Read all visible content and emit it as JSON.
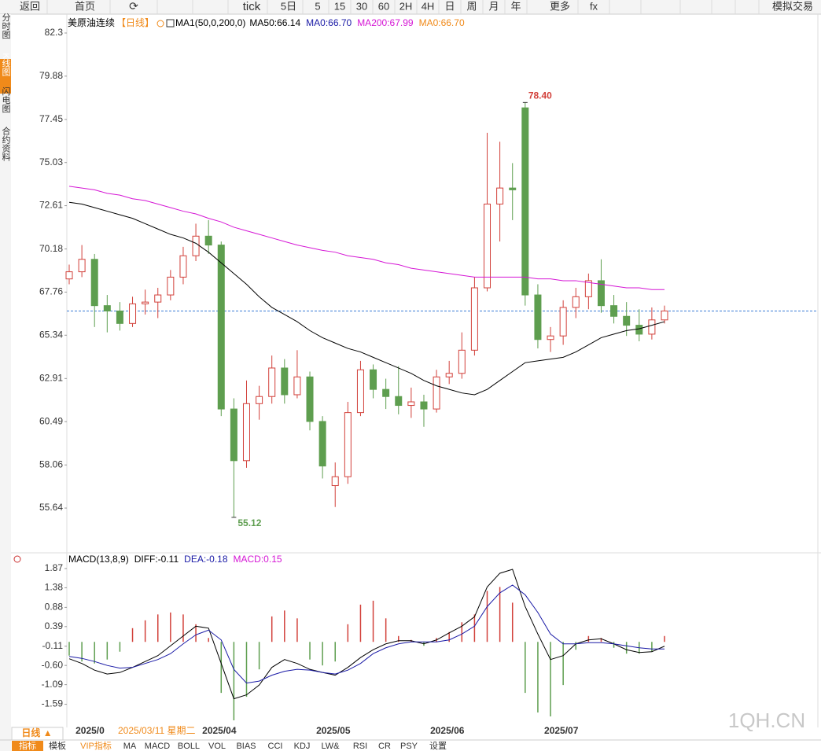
{
  "toolbar": [
    "返回",
    "首页",
    "tick",
    "5日",
    "5",
    "15",
    "30",
    "60",
    "2H",
    "4H",
    "日",
    "周",
    "月",
    "年",
    "更多",
    "fx",
    "模拟交易"
  ],
  "sidebar": [
    "分时图",
    "K线图",
    "闪电图",
    "合约资料"
  ],
  "cursor_label": "2025/03/11 星期二",
  "period_button": "日线 ▲",
  "tabs": [
    "指标",
    "模板",
    "VIP指标",
    "MA",
    "MACD",
    "BOLL",
    "VOL",
    "BIAS",
    "CCI",
    "KDJ",
    "LW&",
    "RSI",
    "CR",
    "PSY",
    "设置"
  ],
  "watermark": "1QH.CN",
  "chart_data": [
    {
      "type": "candlestick",
      "title": "美原油连续",
      "period": "【日线】",
      "indicator": "MA1(50,0,200,0)",
      "categories": [
        null,
        "2025/0",
        null,
        null,
        null,
        null,
        null,
        null,
        null,
        null,
        null,
        "2025/04",
        null,
        null,
        null,
        null,
        null,
        null,
        null,
        null,
        "2025/05",
        null,
        null,
        null,
        null,
        null,
        null,
        null,
        null,
        "2025/06",
        null,
        null,
        null,
        null,
        null,
        null,
        null,
        null,
        "2025/07",
        null,
        null,
        null,
        null,
        null,
        null,
        null,
        null,
        null
      ],
      "ohlc": [
        [
          68.5,
          69.3,
          68.2,
          68.9
        ],
        [
          68.9,
          70.4,
          68.6,
          69.6
        ],
        [
          69.6,
          69.9,
          65.8,
          67.0
        ],
        [
          67.0,
          67.6,
          65.5,
          66.7
        ],
        [
          66.7,
          67.2,
          65.6,
          66.0
        ],
        [
          66.0,
          67.5,
          65.8,
          67.1
        ],
        [
          67.1,
          67.9,
          66.5,
          67.2
        ],
        [
          67.2,
          68.0,
          66.3,
          67.6
        ],
        [
          67.6,
          69.0,
          67.3,
          68.6
        ],
        [
          68.6,
          70.3,
          68.2,
          69.8
        ],
        [
          69.8,
          71.6,
          69.5,
          70.9
        ],
        [
          70.9,
          71.8,
          69.9,
          70.4
        ],
        [
          70.4,
          70.6,
          60.8,
          61.2
        ],
        [
          61.2,
          61.8,
          55.12,
          58.3
        ],
        [
          58.3,
          62.8,
          57.9,
          61.5
        ],
        [
          61.5,
          62.5,
          60.6,
          61.9
        ],
        [
          61.9,
          64.2,
          61.5,
          63.5
        ],
        [
          63.5,
          64.0,
          61.5,
          62.0
        ],
        [
          62.0,
          64.5,
          61.8,
          63.0
        ],
        [
          63.0,
          63.3,
          60.0,
          60.5
        ],
        [
          60.5,
          60.8,
          57.3,
          58.0
        ],
        [
          56.9,
          58.2,
          55.7,
          57.4
        ],
        [
          57.4,
          61.6,
          57.0,
          61.0
        ],
        [
          61.0,
          63.9,
          60.8,
          63.4
        ],
        [
          63.4,
          63.7,
          61.8,
          62.3
        ],
        [
          62.3,
          62.9,
          61.2,
          61.9
        ],
        [
          61.9,
          63.6,
          60.9,
          61.4
        ],
        [
          61.4,
          62.4,
          60.7,
          61.6
        ],
        [
          61.6,
          62.0,
          60.2,
          61.2
        ],
        [
          61.2,
          63.4,
          61.0,
          63.0
        ],
        [
          63.0,
          63.9,
          62.6,
          63.2
        ],
        [
          63.2,
          65.5,
          62.9,
          64.5
        ],
        [
          64.5,
          68.6,
          64.2,
          68.0
        ],
        [
          68.0,
          76.7,
          67.8,
          72.7
        ],
        [
          72.7,
          76.2,
          70.6,
          73.6
        ],
        [
          73.6,
          75.0,
          71.8,
          73.5
        ],
        [
          78.1,
          78.4,
          67.0,
          67.6
        ],
        [
          67.6,
          68.2,
          64.6,
          65.1
        ],
        [
          65.1,
          65.8,
          64.4,
          65.3
        ],
        [
          65.3,
          67.3,
          64.8,
          66.9
        ],
        [
          66.9,
          68.0,
          66.3,
          67.5
        ],
        [
          67.5,
          68.8,
          66.8,
          68.4
        ],
        [
          68.4,
          69.6,
          66.6,
          67.0
        ],
        [
          67.0,
          67.6,
          66.0,
          66.4
        ],
        [
          66.4,
          67.2,
          65.3,
          65.9
        ],
        [
          65.9,
          66.8,
          65.0,
          65.4
        ],
        [
          65.4,
          66.9,
          65.1,
          66.2
        ],
        [
          66.2,
          67.0,
          66.0,
          66.7
        ]
      ],
      "up_color": "#d2403a",
      "down_color": "#5e9e4f",
      "series": [
        {
          "name": "MA50:66.14",
          "color": "#000000",
          "values": [
            72.8,
            72.7,
            72.5,
            72.3,
            72.1,
            71.9,
            71.6,
            71.3,
            71.0,
            70.8,
            70.5,
            70.0,
            69.4,
            68.8,
            68.2,
            67.5,
            66.9,
            66.5,
            66.1,
            65.6,
            65.2,
            64.9,
            64.6,
            64.4,
            64.1,
            63.8,
            63.5,
            63.2,
            62.8,
            62.5,
            62.3,
            62.1,
            62.0,
            62.3,
            62.8,
            63.3,
            63.8,
            63.9,
            64.0,
            64.1,
            64.4,
            64.8,
            65.2,
            65.4,
            65.6,
            65.7,
            65.9,
            66.1
          ]
        },
        {
          "name": "MA200:67.99",
          "color": "#d516d5",
          "values": [
            73.7,
            73.6,
            73.5,
            73.3,
            73.2,
            73.0,
            72.9,
            72.7,
            72.5,
            72.3,
            72.15,
            71.9,
            71.7,
            71.4,
            71.2,
            71.0,
            70.8,
            70.6,
            70.4,
            70.25,
            70.1,
            70.0,
            69.8,
            69.7,
            69.6,
            69.4,
            69.3,
            69.1,
            69.0,
            68.9,
            68.8,
            68.7,
            68.6,
            68.6,
            68.6,
            68.6,
            68.6,
            68.5,
            68.5,
            68.4,
            68.4,
            68.3,
            68.2,
            68.1,
            68.0,
            68.0,
            67.9,
            67.9
          ]
        }
      ],
      "legend_extra": [
        {
          "text": "MA0:66.70",
          "color": "#1a1aa6"
        },
        {
          "text": "MA0:66.70",
          "color": "#f08a1a"
        }
      ],
      "price_line": 66.7,
      "price_line_color": "#3a7bd5",
      "high_label": "78.40",
      "low_label": "55.12",
      "ylim": [
        53.26,
        83.27
      ],
      "yticks": [
        82.3,
        79.88,
        77.45,
        75.03,
        72.61,
        70.18,
        67.76,
        65.34,
        62.91,
        60.49,
        58.06,
        55.64
      ]
    },
    {
      "type": "macd",
      "title": "MACD(13,8,9)",
      "series": [
        {
          "name": "DIFF:-0.11",
          "color": "#000000",
          "values": [
            -0.43,
            -0.55,
            -0.72,
            -0.82,
            -0.78,
            -0.65,
            -0.5,
            -0.35,
            -0.1,
            0.15,
            0.4,
            0.35,
            -0.55,
            -1.45,
            -1.35,
            -1.1,
            -0.65,
            -0.45,
            -0.55,
            -0.7,
            -0.78,
            -0.85,
            -0.65,
            -0.4,
            -0.2,
            -0.05,
            0.03,
            0.03,
            -0.05,
            0.05,
            0.23,
            0.4,
            0.64,
            1.4,
            1.75,
            1.85,
            0.9,
            0.2,
            -0.45,
            -0.35,
            -0.05,
            0.05,
            0.08,
            -0.05,
            -0.2,
            -0.27,
            -0.25,
            -0.11
          ]
        },
        {
          "name": "DEA:-0.18",
          "color": "#1a1aa6",
          "values": [
            -0.37,
            -0.42,
            -0.5,
            -0.6,
            -0.67,
            -0.65,
            -0.55,
            -0.45,
            -0.3,
            -0.05,
            0.18,
            0.3,
            0.05,
            -0.7,
            -1.05,
            -1.0,
            -0.85,
            -0.75,
            -0.7,
            -0.72,
            -0.78,
            -0.82,
            -0.72,
            -0.55,
            -0.3,
            -0.15,
            -0.05,
            0.0,
            0.0,
            0.0,
            0.05,
            0.2,
            0.4,
            0.9,
            1.25,
            1.45,
            1.2,
            0.75,
            0.2,
            -0.05,
            -0.05,
            -0.02,
            -0.02,
            -0.05,
            -0.1,
            -0.15,
            -0.18,
            -0.18
          ]
        },
        {
          "name": "MACD:0.15",
          "color": "#d516d5",
          "up_color": "#d2403a",
          "down_color": "#5e9e4f",
          "values": [
            -0.35,
            -0.5,
            -0.55,
            -0.45,
            -0.25,
            0.35,
            0.55,
            0.7,
            0.75,
            0.7,
            0.45,
            0.1,
            -1.3,
            -2.0,
            -1.4,
            -0.7,
            0.65,
            0.8,
            0.6,
            -0.45,
            -0.6,
            -0.5,
            0.45,
            0.95,
            1.05,
            0.6,
            0.15,
            0.05,
            -0.1,
            0.1,
            0.25,
            0.5,
            0.7,
            1.3,
            1.4,
            1.0,
            -1.3,
            -1.8,
            -1.9,
            -1.1,
            -0.2,
            0.15,
            0.1,
            -0.15,
            -0.3,
            -0.3,
            -0.25,
            0.15
          ]
        }
      ],
      "ylim": [
        -2.08,
        2.03
      ],
      "yticks": [
        1.87,
        1.38,
        0.88,
        0.39,
        -0.11,
        {
          "value": -0.6,
          "label": "-0.60"
        },
        -1.09,
        -1.59
      ]
    }
  ]
}
